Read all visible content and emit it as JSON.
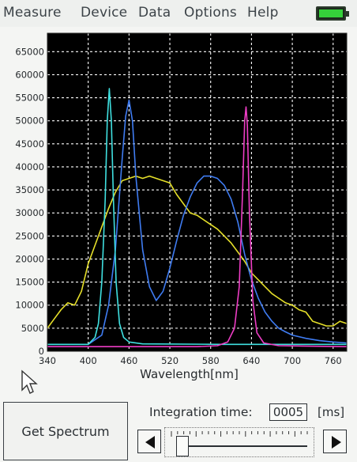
{
  "menu": {
    "items": [
      "Measure",
      "Device",
      "Data",
      "Options",
      "Help"
    ]
  },
  "colors": {
    "plot_background": "#000000",
    "grid": "#ffffff",
    "series_yellow": "#e6e02a",
    "series_blue": "#3f7cf2",
    "series_cyan": "#3fe0e0",
    "series_magenta": "#ee3dc5",
    "battery": "#35d13a"
  },
  "controls": {
    "get_spectrum_label": "Get Spectrum",
    "integration_label": "Integration time:",
    "integration_value": "0005",
    "integration_unit": "[ms]",
    "slider_level": 0.03
  },
  "icons": {
    "battery": "battery-icon",
    "cursor": "mouse-pointer-icon",
    "left": "triangle-left-icon",
    "right": "triangle-right-icon"
  },
  "chart_data": {
    "type": "line",
    "xlabel": "Wavelength[nm]",
    "ylabel": "",
    "xlim": [
      340,
      780
    ],
    "ylim": [
      0,
      69000
    ],
    "x_ticks": [
      340,
      400,
      460,
      520,
      580,
      640,
      700,
      760
    ],
    "y_ticks": [
      0,
      5000,
      10000,
      15000,
      20000,
      25000,
      30000,
      35000,
      40000,
      45000,
      50000,
      55000,
      60000,
      65000
    ],
    "grid": true,
    "series": [
      {
        "color": "#e6e02a",
        "points": [
          [
            340,
            5000
          ],
          [
            350,
            7000
          ],
          [
            360,
            9000
          ],
          [
            370,
            10500
          ],
          [
            380,
            10000
          ],
          [
            390,
            13000
          ],
          [
            400,
            19000
          ],
          [
            410,
            23000
          ],
          [
            420,
            27000
          ],
          [
            430,
            31000
          ],
          [
            440,
            34500
          ],
          [
            450,
            37000
          ],
          [
            460,
            37500
          ],
          [
            470,
            38000
          ],
          [
            480,
            37500
          ],
          [
            490,
            38000
          ],
          [
            500,
            37500
          ],
          [
            510,
            37000
          ],
          [
            520,
            36500
          ],
          [
            530,
            34000
          ],
          [
            540,
            32000
          ],
          [
            550,
            30000
          ],
          [
            560,
            29500
          ],
          [
            570,
            28500
          ],
          [
            580,
            27500
          ],
          [
            590,
            26500
          ],
          [
            600,
            25000
          ],
          [
            610,
            23500
          ],
          [
            620,
            21500
          ],
          [
            630,
            19500
          ],
          [
            640,
            17000
          ],
          [
            650,
            15500
          ],
          [
            660,
            14000
          ],
          [
            670,
            12500
          ],
          [
            680,
            11500
          ],
          [
            690,
            10500
          ],
          [
            700,
            10000
          ],
          [
            710,
            9000
          ],
          [
            720,
            8500
          ],
          [
            730,
            6500
          ],
          [
            740,
            6000
          ],
          [
            750,
            5500
          ],
          [
            760,
            5500
          ],
          [
            770,
            6500
          ],
          [
            780,
            6000
          ]
        ]
      },
      {
        "color": "#3f7cf2",
        "points": [
          [
            340,
            1500
          ],
          [
            400,
            1500
          ],
          [
            420,
            3500
          ],
          [
            430,
            10000
          ],
          [
            440,
            22000
          ],
          [
            450,
            42000
          ],
          [
            455,
            51000
          ],
          [
            460,
            54500
          ],
          [
            465,
            50000
          ],
          [
            470,
            38000
          ],
          [
            480,
            22000
          ],
          [
            490,
            14000
          ],
          [
            500,
            11000
          ],
          [
            510,
            13000
          ],
          [
            520,
            18000
          ],
          [
            530,
            24000
          ],
          [
            540,
            29500
          ],
          [
            550,
            33500
          ],
          [
            560,
            36500
          ],
          [
            570,
            38000
          ],
          [
            580,
            38000
          ],
          [
            590,
            37500
          ],
          [
            600,
            36000
          ],
          [
            610,
            33000
          ],
          [
            620,
            28000
          ],
          [
            630,
            21000
          ],
          [
            640,
            15500
          ],
          [
            650,
            11500
          ],
          [
            660,
            8500
          ],
          [
            670,
            6500
          ],
          [
            680,
            5000
          ],
          [
            690,
            4200
          ],
          [
            700,
            3500
          ],
          [
            720,
            2800
          ],
          [
            740,
            2300
          ],
          [
            760,
            2000
          ],
          [
            780,
            1800
          ]
        ]
      },
      {
        "color": "#3fe0e0",
        "points": [
          [
            340,
            1500
          ],
          [
            400,
            1500
          ],
          [
            410,
            3000
          ],
          [
            415,
            6000
          ],
          [
            420,
            15000
          ],
          [
            425,
            33000
          ],
          [
            428,
            50000
          ],
          [
            431,
            57000
          ],
          [
            434,
            50000
          ],
          [
            437,
            33000
          ],
          [
            441,
            15000
          ],
          [
            446,
            6000
          ],
          [
            452,
            3000
          ],
          [
            460,
            2000
          ],
          [
            480,
            1600
          ],
          [
            600,
            1500
          ],
          [
            780,
            1500
          ]
        ]
      },
      {
        "color": "#ee3dc5",
        "points": [
          [
            340,
            1000
          ],
          [
            560,
            1000
          ],
          [
            590,
            1200
          ],
          [
            605,
            2000
          ],
          [
            615,
            5000
          ],
          [
            622,
            14000
          ],
          [
            627,
            35000
          ],
          [
            630,
            50000
          ],
          [
            632,
            53000
          ],
          [
            634,
            49000
          ],
          [
            637,
            30000
          ],
          [
            642,
            11000
          ],
          [
            648,
            4000
          ],
          [
            658,
            1800
          ],
          [
            680,
            1200
          ],
          [
            780,
            1000
          ]
        ]
      }
    ]
  }
}
